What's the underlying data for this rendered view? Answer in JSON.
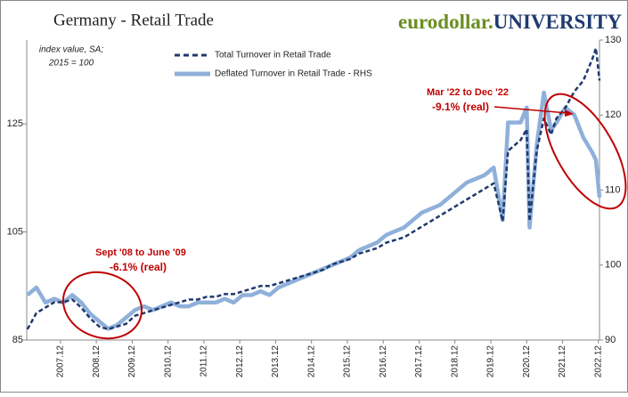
{
  "chart_data": {
    "type": "line",
    "title": "Germany - Retail Trade",
    "brand": [
      "eurodollar.",
      "UNIVERSITY"
    ],
    "note": [
      "index value, SA;",
      "2015 = 100"
    ],
    "annotations": [
      {
        "lines": [
          "Sept '08 to June '09",
          "-6.1% (real)"
        ]
      },
      {
        "lines": [
          "Mar '22 to Dec '22",
          "-9.1% (real)"
        ]
      }
    ],
    "x": [
      2007.0,
      2007.25,
      2007.5,
      2007.75,
      2008.0,
      2008.25,
      2008.5,
      2008.75,
      2009.0,
      2009.25,
      2009.5,
      2009.75,
      2010.0,
      2010.25,
      2010.5,
      2010.75,
      2011.0,
      2011.25,
      2011.5,
      2011.75,
      2012.0,
      2012.25,
      2012.5,
      2012.75,
      2013.0,
      2013.25,
      2013.5,
      2013.75,
      2014.0,
      2014.25,
      2014.5,
      2014.75,
      2015.0,
      2015.25,
      2015.5,
      2015.75,
      2016.0,
      2016.25,
      2016.5,
      2016.75,
      2017.0,
      2017.25,
      2017.5,
      2017.75,
      2018.0,
      2018.25,
      2018.5,
      2018.75,
      2019.0,
      2019.25,
      2019.5,
      2019.75,
      2020.0,
      2020.25,
      2020.4,
      2020.75,
      2020.92,
      2021.0,
      2021.2,
      2021.4,
      2021.6,
      2021.75,
      2022.0,
      2022.25,
      2022.5,
      2022.75,
      2022.85,
      2022.95
    ],
    "series": [
      {
        "name": "Total Turnover in Retail Trade",
        "color": "#1f3a6e",
        "dash": true,
        "values": [
          87,
          90,
          91,
          92,
          92,
          92.5,
          91,
          89,
          87.5,
          87,
          87.5,
          88,
          89.5,
          90,
          90.5,
          91,
          91.5,
          92,
          92.5,
          92.5,
          93,
          93,
          93.5,
          93.5,
          94,
          94.5,
          95,
          95,
          95.5,
          96,
          96.5,
          97,
          97.5,
          98,
          99,
          99.5,
          100,
          101,
          101.5,
          102,
          103,
          103.5,
          104,
          105,
          106,
          107,
          108,
          109,
          110,
          111,
          112,
          113,
          114,
          107,
          120,
          122,
          124,
          107,
          120,
          126,
          123,
          126,
          128,
          131,
          133,
          137,
          139,
          133
        ]
      },
      {
        "name": "Deflated Turnover in Retail Trade - RHS",
        "color": "#8fb0da",
        "dash": false,
        "axis": "y2",
        "values": [
          96,
          97,
          95,
          95.5,
          95,
          96,
          95,
          93.5,
          92.5,
          91.5,
          92,
          93,
          94,
          94.5,
          94,
          94.5,
          95,
          94.5,
          94.5,
          95,
          95,
          95,
          95.5,
          95,
          96,
          96,
          96.5,
          96,
          97,
          97.5,
          98,
          98.5,
          99,
          99.5,
          100,
          100.5,
          101,
          102,
          102.5,
          103,
          104,
          104.5,
          105,
          106,
          107,
          107.5,
          108,
          109,
          110,
          111,
          111.5,
          112,
          113,
          106,
          119,
          119,
          121,
          105,
          116,
          123,
          118,
          119,
          121,
          120,
          117,
          115,
          114,
          109
        ]
      }
    ],
    "xlim": [
      2006.98,
      2022.95
    ],
    "xticks": [
      {
        "value": 2007.92,
        "label": "2007.12"
      },
      {
        "value": 2008.92,
        "label": "2008.12"
      },
      {
        "value": 2009.92,
        "label": "2009.12"
      },
      {
        "value": 2010.92,
        "label": "2010.12"
      },
      {
        "value": 2011.92,
        "label": "2011.12"
      },
      {
        "value": 2012.92,
        "label": "2012.12"
      },
      {
        "value": 2013.92,
        "label": "2013.12"
      },
      {
        "value": 2014.92,
        "label": "2014.12"
      },
      {
        "value": 2015.92,
        "label": "2015.12"
      },
      {
        "value": 2016.92,
        "label": "2016.12"
      },
      {
        "value": 2017.92,
        "label": "2017.12"
      },
      {
        "value": 2018.92,
        "label": "2018.12"
      },
      {
        "value": 2019.92,
        "label": "2019.12"
      },
      {
        "value": 2020.92,
        "label": "2020.12"
      },
      {
        "value": 2021.92,
        "label": "2021.12"
      },
      {
        "value": 2022.92,
        "label": "2022.12"
      }
    ],
    "ylim": [
      85,
      140.5
    ],
    "yticks": [
      85,
      105,
      125
    ],
    "y2lim": [
      90,
      130
    ],
    "y2ticks": [
      90,
      100,
      110,
      120,
      130
    ]
  }
}
